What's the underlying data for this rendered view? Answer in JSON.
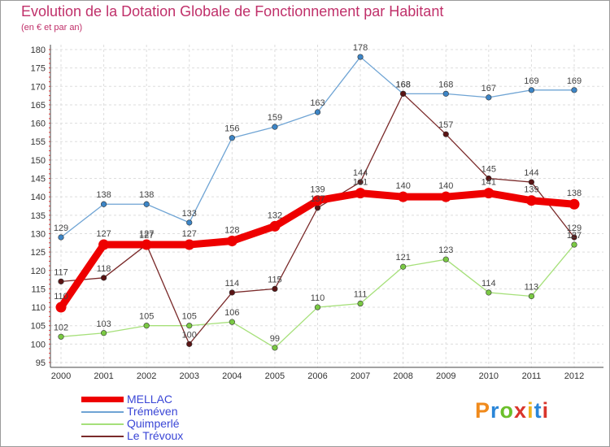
{
  "title": "Evolution de la Dotation Globale de Fonctionnement par Habitant",
  "subtitle": "(en € et par an)",
  "logo_text": "Proxiti",
  "logo_colors": [
    "#f08a1c",
    "#2b86d8",
    "#6bbf2a",
    "#d9352c",
    "#f0b21c",
    "#2b86d8",
    "#d9352c"
  ],
  "chart_data": {
    "type": "line",
    "x": [
      "2000",
      "2001",
      "2002",
      "2003",
      "2004",
      "2005",
      "2006",
      "2007",
      "2008",
      "2009",
      "2010",
      "2011",
      "2012"
    ],
    "ylim": [
      95,
      180
    ],
    "yticks": [
      95,
      100,
      105,
      110,
      115,
      120,
      125,
      130,
      135,
      140,
      145,
      150,
      155,
      160,
      165,
      170,
      175,
      180
    ],
    "grid": true,
    "legend_position": "bottom-left",
    "series": [
      {
        "name": "MELLAC",
        "color": "#ee0000",
        "marker": "#ee0000",
        "values": [
          110,
          127,
          127,
          127,
          128,
          132,
          139,
          141,
          140,
          140,
          141,
          139,
          138
        ]
      },
      {
        "name": "Tréméven",
        "color": "#6fa4d4",
        "marker": "#3d85c6",
        "values": [
          129,
          138,
          138,
          133,
          156,
          159,
          163,
          178,
          168,
          168,
          167,
          169,
          169
        ]
      },
      {
        "name": "Quimperlé",
        "color": "#a6e07a",
        "marker": "#7ac943",
        "values": [
          102,
          103,
          105,
          105,
          106,
          99,
          110,
          111,
          121,
          123,
          114,
          113,
          127
        ]
      },
      {
        "name": "Le Trévoux",
        "color": "#7a2a2a",
        "marker": "#5a1414",
        "values": [
          117,
          118,
          127,
          100,
          114,
          115,
          137,
          144,
          168,
          157,
          145,
          144,
          129
        ]
      }
    ]
  }
}
